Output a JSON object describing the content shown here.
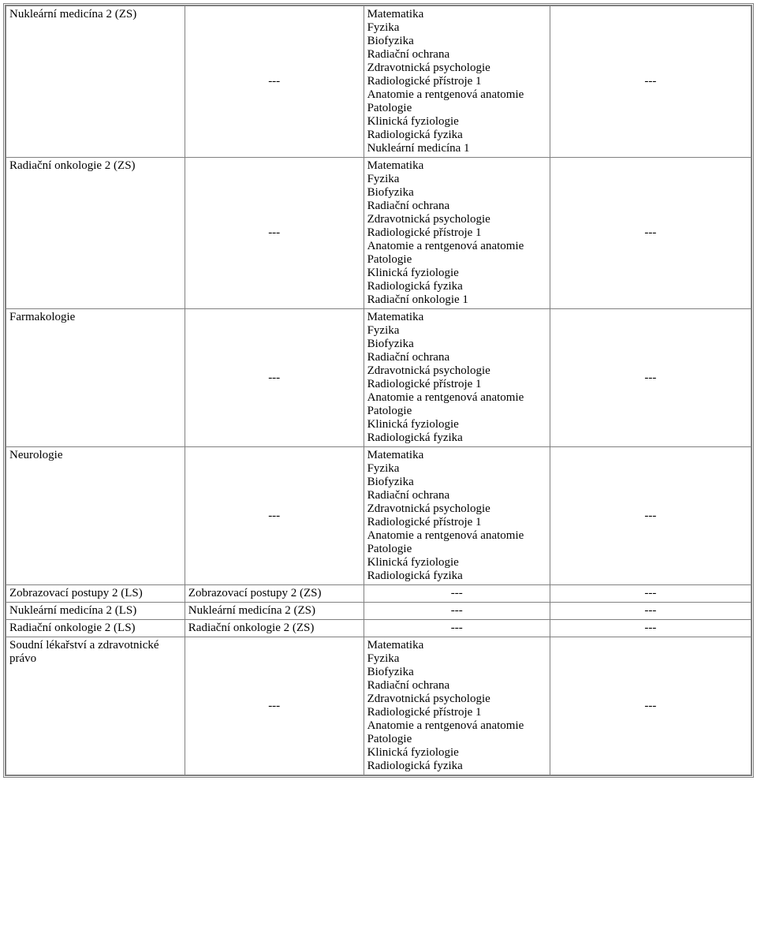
{
  "table": {
    "columns_count": 4,
    "border_color": "#808080",
    "outer_border": "double",
    "background_color": "#ffffff",
    "text_color": "#000000",
    "font_family": "Times New Roman",
    "font_size_pt": 11,
    "column_widths_pct": [
      24,
      24,
      25,
      27
    ],
    "rows": [
      {
        "cells": [
          {
            "text": "Nukleární medicína 2 (ZS)",
            "align": "left",
            "valign": "top"
          },
          {
            "text": "---",
            "align": "center",
            "valign": "middle"
          },
          {
            "lines": [
              "Matematika",
              "Fyzika",
              "Biofyzika",
              "Radiační ochrana",
              "Zdravotnická psychologie",
              "Radiologické přístroje 1",
              "Anatomie a rentgenová anatomie",
              "Patologie",
              "Klinická fyziologie",
              "Radiologická fyzika",
              "Nukleární medicína 1"
            ],
            "align": "left",
            "valign": "top"
          },
          {
            "text": "---",
            "align": "center",
            "valign": "middle"
          }
        ]
      },
      {
        "cells": [
          {
            "text": "Radiační onkologie 2 (ZS)",
            "align": "left",
            "valign": "top"
          },
          {
            "text": "---",
            "align": "center",
            "valign": "middle"
          },
          {
            "lines": [
              "Matematika",
              "Fyzika",
              "Biofyzika",
              "Radiační ochrana",
              "Zdravotnická psychologie",
              "Radiologické přístroje 1",
              "Anatomie a rentgenová anatomie",
              "Patologie",
              "Klinická fyziologie",
              "Radiologická fyzika",
              "Radiační onkologie 1"
            ],
            "align": "left",
            "valign": "top"
          },
          {
            "text": "---",
            "align": "center",
            "valign": "middle"
          }
        ]
      },
      {
        "cells": [
          {
            "text": "Farmakologie",
            "align": "left",
            "valign": "top"
          },
          {
            "text": "---",
            "align": "center",
            "valign": "middle"
          },
          {
            "lines": [
              "Matematika",
              "Fyzika",
              "Biofyzika",
              "Radiační ochrana",
              "Zdravotnická psychologie",
              "Radiologické přístroje 1",
              "Anatomie a rentgenová anatomie",
              "Patologie",
              "Klinická fyziologie",
              "Radiologická fyzika"
            ],
            "align": "left",
            "valign": "top"
          },
          {
            "text": "---",
            "align": "center",
            "valign": "middle"
          }
        ]
      },
      {
        "cells": [
          {
            "text": "Neurologie",
            "align": "left",
            "valign": "top"
          },
          {
            "text": "---",
            "align": "center",
            "valign": "middle"
          },
          {
            "lines": [
              "Matematika",
              "Fyzika",
              "Biofyzika",
              "Radiační ochrana",
              "Zdravotnická psychologie",
              "Radiologické přístroje 1",
              "Anatomie a rentgenová anatomie",
              "Patologie",
              "Klinická fyziologie",
              "Radiologická fyzika"
            ],
            "align": "left",
            "valign": "top"
          },
          {
            "text": "---",
            "align": "center",
            "valign": "middle"
          }
        ]
      },
      {
        "cells": [
          {
            "text": "Zobrazovací postupy 2 (LS)",
            "align": "left",
            "valign": "top"
          },
          {
            "text": "Zobrazovací postupy 2 (ZS)",
            "align": "left",
            "valign": "top"
          },
          {
            "text": "---",
            "align": "center",
            "valign": "top"
          },
          {
            "text": "---",
            "align": "center",
            "valign": "top"
          }
        ]
      },
      {
        "cells": [
          {
            "text": "Nukleární medicína 2  (LS)",
            "align": "left",
            "valign": "top"
          },
          {
            "text": "Nukleární medicína 2  (ZS)",
            "align": "left",
            "valign": "top"
          },
          {
            "text": "---",
            "align": "center",
            "valign": "top"
          },
          {
            "text": "---",
            "align": "center",
            "valign": "top"
          }
        ]
      },
      {
        "cells": [
          {
            "text": "Radiační onkologie 2  (LS)",
            "align": "left",
            "valign": "top"
          },
          {
            "text": "Radiační onkologie 2  (ZS)",
            "align": "left",
            "valign": "top"
          },
          {
            "text": "---",
            "align": "center",
            "valign": "top"
          },
          {
            "text": "---",
            "align": "center",
            "valign": "top"
          }
        ]
      },
      {
        "cells": [
          {
            "lines": [
              "Soudní lékařství a zdravotnické",
              "právo"
            ],
            "align": "left",
            "valign": "top"
          },
          {
            "text": "---",
            "align": "center",
            "valign": "middle"
          },
          {
            "lines": [
              "Matematika",
              "Fyzika",
              "Biofyzika",
              "Radiační ochrana",
              "Zdravotnická psychologie",
              "Radiologické přístroje 1",
              "Anatomie a rentgenová anatomie",
              "Patologie",
              "Klinická fyziologie",
              "Radiologická fyzika"
            ],
            "align": "left",
            "valign": "top"
          },
          {
            "text": "---",
            "align": "center",
            "valign": "middle"
          }
        ]
      }
    ]
  }
}
